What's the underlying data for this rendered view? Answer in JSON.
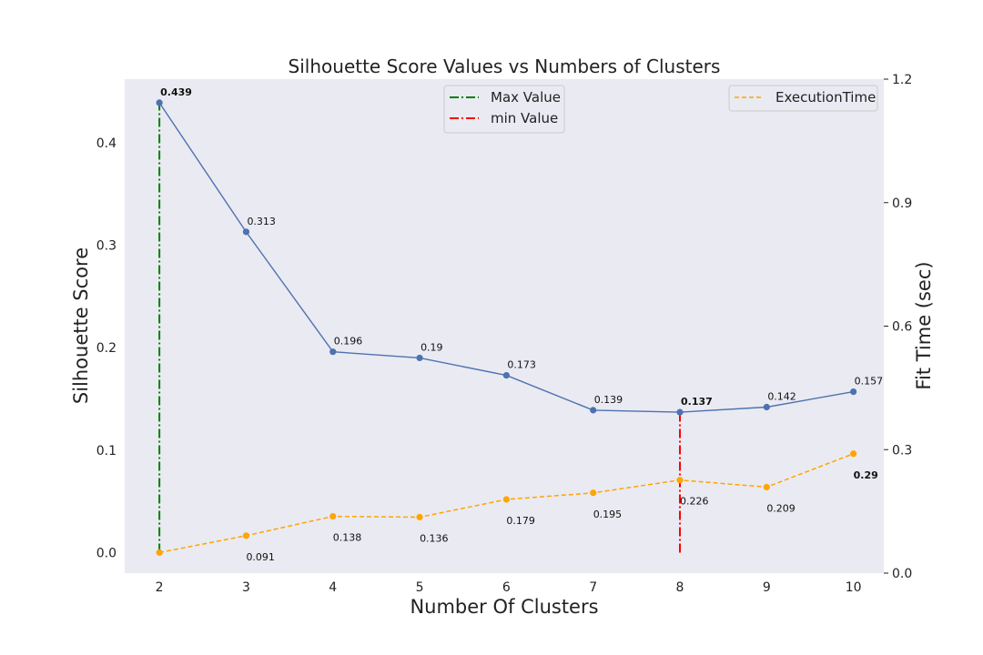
{
  "chart_data": {
    "type": "line",
    "title": "Silhouette Score Values vs Numbers of Clusters",
    "xlabel": "Number Of Clusters",
    "ylabel": "Silhouette Score",
    "y2label": "Fit Time (sec)",
    "x": [
      2,
      3,
      4,
      5,
      6,
      7,
      8,
      9,
      10
    ],
    "xlim": [
      1.6,
      10.35
    ],
    "ylim": [
      -0.02,
      0.462
    ],
    "y2lim": [
      0.0,
      1.2
    ],
    "yticks": [
      0.0,
      0.1,
      0.2,
      0.3,
      0.4
    ],
    "ytick_labels": [
      "0.0",
      "0.1",
      "0.2",
      "0.3",
      "0.4"
    ],
    "y2ticks": [
      0.0,
      0.3,
      0.6,
      0.9,
      1.2
    ],
    "y2tick_labels": [
      "0.0",
      "0.3",
      "0.6",
      "0.9",
      "1.2"
    ],
    "grid": false,
    "series": [
      {
        "key": "silhouette",
        "axis": "left",
        "values": [
          0.439,
          0.313,
          0.196,
          0.19,
          0.173,
          0.139,
          0.137,
          0.142,
          0.157
        ],
        "labels": [
          "0.439",
          "0.313",
          "0.196",
          "0.19",
          "0.173",
          "0.139",
          "0.137",
          "0.142",
          "0.157"
        ],
        "color": "#4c72b0",
        "style": "solid",
        "highlight": {
          "max_index": 0,
          "max_color": "#008000",
          "min_index": 6,
          "min_color": "#ff0000"
        }
      },
      {
        "key": "fit_time",
        "name": "ExecutionTime",
        "axis": "right",
        "values": [
          0.05,
          0.091,
          0.138,
          0.136,
          0.179,
          0.195,
          0.226,
          0.209,
          0.29
        ],
        "labels": [
          "",
          "0.091",
          "0.138",
          "0.136",
          "0.179",
          "0.195",
          "0.226",
          "0.209",
          "0.29"
        ],
        "color": "#ffa500",
        "style": "dashed",
        "highlight": {
          "max_index": 8,
          "max_color": "#ff0000"
        }
      }
    ],
    "reference_lines": [
      {
        "name": "Max Value",
        "x": 2,
        "y_from": 0.0,
        "y_to": 0.439,
        "color": "#008000",
        "style": "dashdot"
      },
      {
        "name": "min Value",
        "x": 8,
        "y_from": 0.0,
        "y_to": 0.137,
        "color": "#ff0000",
        "style": "dashdot"
      }
    ],
    "legends": [
      {
        "placement": "top-center",
        "entries": [
          "Max Value",
          "min Value"
        ]
      },
      {
        "placement": "top-right",
        "entries": [
          "ExecutionTime"
        ]
      }
    ],
    "colors": {
      "plot_background": "#eaeaf2",
      "page_background": "#ffffff"
    }
  }
}
